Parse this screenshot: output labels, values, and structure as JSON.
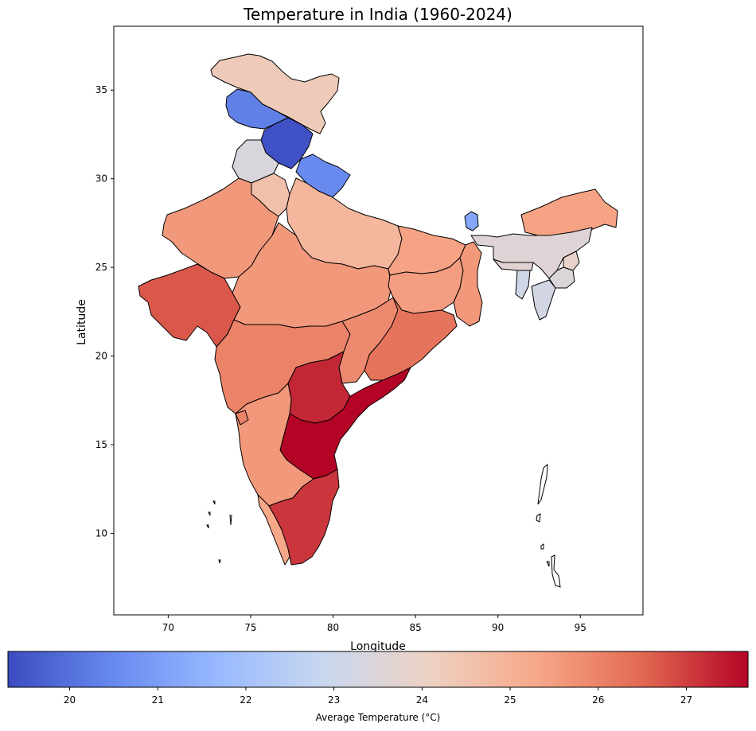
{
  "chart_data": {
    "type": "choropleth",
    "title": "Temperature in India (1960-2024)",
    "xlabel": "Longitude",
    "ylabel": "Latitude",
    "xlim": [
      66.7,
      98.8
    ],
    "ylim": [
      5.4,
      38.6
    ],
    "xticks": [
      70,
      75,
      80,
      85,
      90,
      95
    ],
    "yticks": [
      10,
      15,
      20,
      25,
      30,
      35
    ],
    "colorbar": {
      "label": "Average Temperature (°C)",
      "range": [
        19.3,
        27.7
      ],
      "ticks": [
        20,
        21,
        22,
        23,
        24,
        25,
        26,
        27
      ],
      "colormap": [
        "#3b4cc0",
        "#688aef",
        "#99baff",
        "#c9d8ef",
        "#edd1c2",
        "#f7a889",
        "#e26952",
        "#b40426"
      ]
    },
    "regions": [
      {
        "name": "Ladakh",
        "value": 24.3
      },
      {
        "name": "Jammu and Kashmir",
        "value": 20.3
      },
      {
        "name": "Himachal Pradesh",
        "value": 19.4
      },
      {
        "name": "Punjab",
        "value": 23.4
      },
      {
        "name": "Uttarakhand",
        "value": 20.5
      },
      {
        "name": "Haryana",
        "value": 24.6
      },
      {
        "name": "Rajasthan",
        "value": 25.6
      },
      {
        "name": "Uttar Pradesh",
        "value": 24.9
      },
      {
        "name": "Gujarat",
        "value": 26.7
      },
      {
        "name": "Madhya Pradesh",
        "value": 25.6
      },
      {
        "name": "Bihar",
        "value": 25.4
      },
      {
        "name": "Jharkhand",
        "value": 25.5
      },
      {
        "name": "West Bengal",
        "value": 25.6
      },
      {
        "name": "Sikkim",
        "value": 21.2
      },
      {
        "name": "Arunachal Pradesh",
        "value": 25.4
      },
      {
        "name": "Assam",
        "value": 23.6
      },
      {
        "name": "Meghalaya",
        "value": 23.7
      },
      {
        "name": "Nagaland",
        "value": 23.9
      },
      {
        "name": "Manipur",
        "value": 23.5
      },
      {
        "name": "Tripura",
        "value": 23.1
      },
      {
        "name": "Mizoram",
        "value": 23.2
      },
      {
        "name": "Maharashtra",
        "value": 26.0
      },
      {
        "name": "Chhattisgarh",
        "value": 25.9
      },
      {
        "name": "Odisha",
        "value": 26.3
      },
      {
        "name": "Telangana",
        "value": 27.3
      },
      {
        "name": "Andhra Pradesh",
        "value": 27.7
      },
      {
        "name": "Karnataka",
        "value": 25.6
      },
      {
        "name": "Goa",
        "value": 26.0
      },
      {
        "name": "Kerala",
        "value": 25.3
      },
      {
        "name": "Tamil Nadu",
        "value": 27.1
      }
    ]
  }
}
